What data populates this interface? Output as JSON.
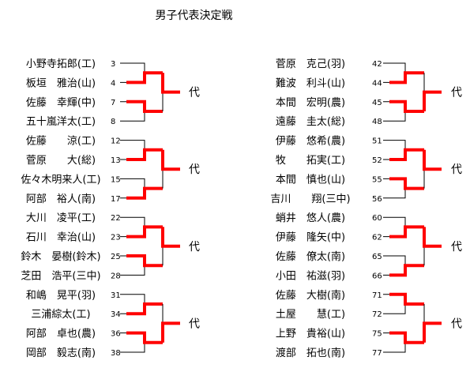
{
  "title": "男子代表決定戦",
  "winner_label": "代",
  "left_side": {
    "groups": [
      {
        "players": [
          {
            "name": "小野寺拓郎(工)",
            "number": "3"
          },
          {
            "name": "板垣　雅治(山)",
            "number": "4"
          },
          {
            "name": "佐藤　幸輝(中)",
            "number": "7"
          },
          {
            "name": "五十嵐洋太(工)",
            "number": "8"
          }
        ],
        "winners": [
          1,
          2
        ],
        "final_winner": 1
      },
      {
        "players": [
          {
            "name": "佐藤　　涼(工)",
            "number": "12"
          },
          {
            "name": "菅原　　大(総)",
            "number": "13"
          },
          {
            "name": "佐々木明来人(工)",
            "number": "15"
          },
          {
            "name": "阿部　裕人(南)",
            "number": "17"
          }
        ],
        "winners": [
          1,
          3
        ],
        "final_winner": 1
      },
      {
        "players": [
          {
            "name": "大川　凌平(工)",
            "number": "22"
          },
          {
            "name": "石川　幸治(山)",
            "number": "23"
          },
          {
            "name": "鈴木　晏樹(鈴木)",
            "number": "25"
          },
          {
            "name": "芝田　浩平(三中)",
            "number": "28"
          }
        ],
        "winners": [
          1,
          2
        ],
        "final_winner": 1
      },
      {
        "players": [
          {
            "name": "和嶋　晃平(羽)",
            "number": "31"
          },
          {
            "name": "三浦綜太(工)",
            "number": "34"
          },
          {
            "name": "阿部　卓也(農)",
            "number": "36"
          },
          {
            "name": "岡部　毅志(南)",
            "number": "38"
          }
        ],
        "winners": [
          1,
          2
        ],
        "final_winner": 2
      }
    ]
  },
  "right_side": {
    "groups": [
      {
        "players": [
          {
            "name": "菅原　克己(羽)",
            "number": "42"
          },
          {
            "name": "難波　利斗(山)",
            "number": "44"
          },
          {
            "name": "本間　宏明(農)",
            "number": "45"
          },
          {
            "name": "遠藤　圭太(総)",
            "number": "48"
          }
        ],
        "winners": [
          1,
          2
        ],
        "final_winner": 2
      },
      {
        "players": [
          {
            "name": "伊藤　悠希(農)",
            "number": "51"
          },
          {
            "name": "牧　　拓実(工)",
            "number": "52"
          },
          {
            "name": "本間　慎也(山)",
            "number": "55"
          },
          {
            "name": "吉川　　翔(三中)",
            "number": "56"
          }
        ],
        "winners": [
          1,
          2
        ],
        "final_winner": 1
      },
      {
        "players": [
          {
            "name": "蛸井　悠人(農)",
            "number": "60"
          },
          {
            "name": "伊藤　隆矢(中)",
            "number": "62"
          },
          {
            "name": "佐藤　僚太(南)",
            "number": "65"
          },
          {
            "name": "小田　祐滋(羽)",
            "number": "66"
          }
        ],
        "winners": [
          1,
          3
        ],
        "final_winner": 1
      },
      {
        "players": [
          {
            "name": "佐藤　大樹(南)",
            "number": "71"
          },
          {
            "name": "土屋　　慧(工)",
            "number": "72"
          },
          {
            "name": "上野　貴裕(山)",
            "number": "75"
          },
          {
            "name": "渡部　拓也(南)",
            "number": "77"
          }
        ],
        "winners": [
          0,
          2
        ],
        "final_winner": 2
      }
    ]
  },
  "colors": {
    "winner_line": "#ff0000",
    "line": "#000000",
    "text": "#000000"
  }
}
